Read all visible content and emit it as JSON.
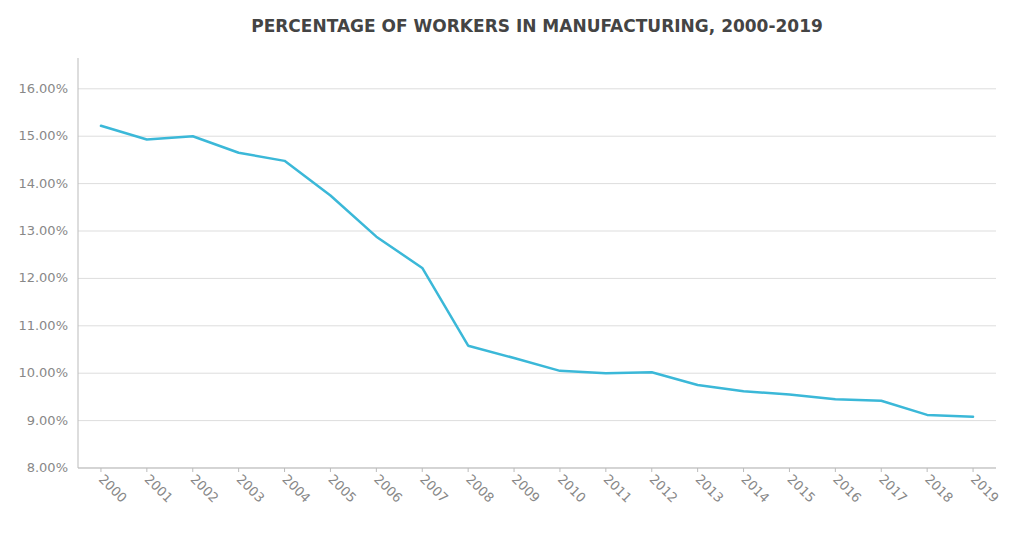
{
  "chart_data": {
    "type": "line",
    "title": "PERCENTAGE OF WORKERS IN MANUFACTURING, 2000-2019",
    "x": [
      2000,
      2001,
      2002,
      2003,
      2004,
      2005,
      2006,
      2007,
      2008,
      2009,
      2010,
      2011,
      2012,
      2013,
      2014,
      2015,
      2016,
      2017,
      2018,
      2019
    ],
    "values": [
      0.1522,
      0.1493,
      0.15,
      0.1465,
      0.1448,
      0.1375,
      0.1288,
      0.1222,
      0.1058,
      0.1032,
      0.1005,
      0.1,
      0.1002,
      0.0975,
      0.0962,
      0.0955,
      0.0945,
      0.0942,
      0.0912,
      0.0908
    ],
    "color": "#3BB8D8",
    "xlim": [
      1999.5,
      2019.5
    ],
    "xticks": [
      2000,
      2001,
      2002,
      2003,
      2004,
      2005,
      2006,
      2007,
      2008,
      2009,
      2010,
      2011,
      2012,
      2013,
      2014,
      2015,
      2016,
      2017,
      2018,
      2019
    ],
    "ylim": [
      0.08,
      0.1665
    ],
    "yticks": [
      {
        "value": 0.08,
        "label": "8.00%"
      },
      {
        "value": 0.09,
        "label": "9.00%"
      },
      {
        "value": 0.1,
        "label": "10.00%"
      },
      {
        "value": 0.11,
        "label": "11.00%"
      },
      {
        "value": 0.12,
        "label": "12.00%"
      },
      {
        "value": 0.13,
        "label": "13.00%"
      },
      {
        "value": 0.14,
        "label": "14.00%"
      },
      {
        "value": 0.15,
        "label": "15.00%"
      },
      {
        "value": 0.16,
        "label": "16.00%"
      }
    ],
    "grid": true
  }
}
